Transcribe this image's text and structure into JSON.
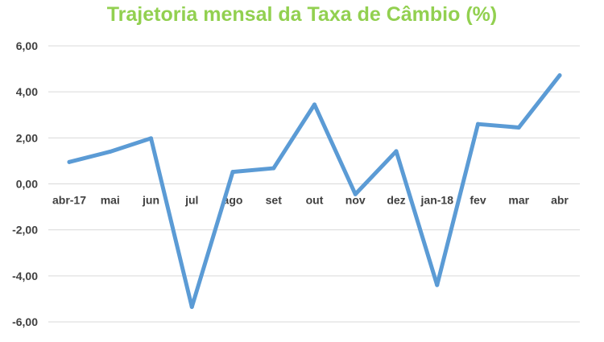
{
  "chart_data": {
    "type": "line",
    "title": "Trajetoria mensal da Taxa de Câmbio (%)",
    "xlabel": "",
    "ylabel": "",
    "categories": [
      "abr-17",
      "mai",
      "jun",
      "jul",
      "ago",
      "set",
      "out",
      "nov",
      "dez",
      "jan-18",
      "fev",
      "mar",
      "abr"
    ],
    "series": [
      {
        "values": [
          0.95,
          1.4,
          1.98,
          -5.35,
          0.52,
          0.68,
          3.45,
          -0.45,
          1.42,
          -4.4,
          2.6,
          2.45,
          4.72
        ]
      }
    ],
    "ylim": [
      -6,
      6
    ],
    "yticks": [
      "6,00",
      "4,00",
      "2,00",
      "0,00",
      "-2,00",
      "-4,00",
      "-6,00"
    ],
    "ytick_values": [
      6,
      4,
      2,
      0,
      -2,
      -4,
      -6
    ],
    "grid": true,
    "legend": "none",
    "line_color": "#5b9bd5",
    "title_color": "#92d050"
  }
}
